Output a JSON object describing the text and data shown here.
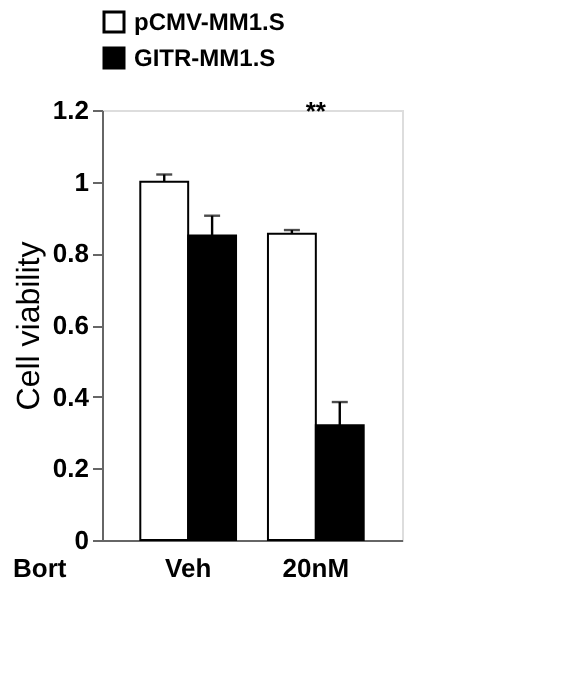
{
  "chart_data": {
    "type": "bar",
    "xlabel": "Bort",
    "ylabel": "Cell viability",
    "categories": [
      "Veh",
      "20nM"
    ],
    "series": [
      {
        "name": "pCMV-MM1.S",
        "color": "#ffffff",
        "values": [
          1.0,
          0.855
        ],
        "errors": [
          0.02,
          0.01
        ]
      },
      {
        "name": "GITR-MM1.S",
        "color": "#000000",
        "values": [
          0.85,
          0.32
        ],
        "errors": [
          0.055,
          0.065
        ]
      }
    ],
    "ylim": [
      0,
      1.2
    ],
    "yticks": [
      0,
      0.2,
      0.4,
      0.6,
      0.8,
      1,
      1.2
    ],
    "grid": false,
    "legend": "top",
    "annotations": [
      "**"
    ]
  }
}
